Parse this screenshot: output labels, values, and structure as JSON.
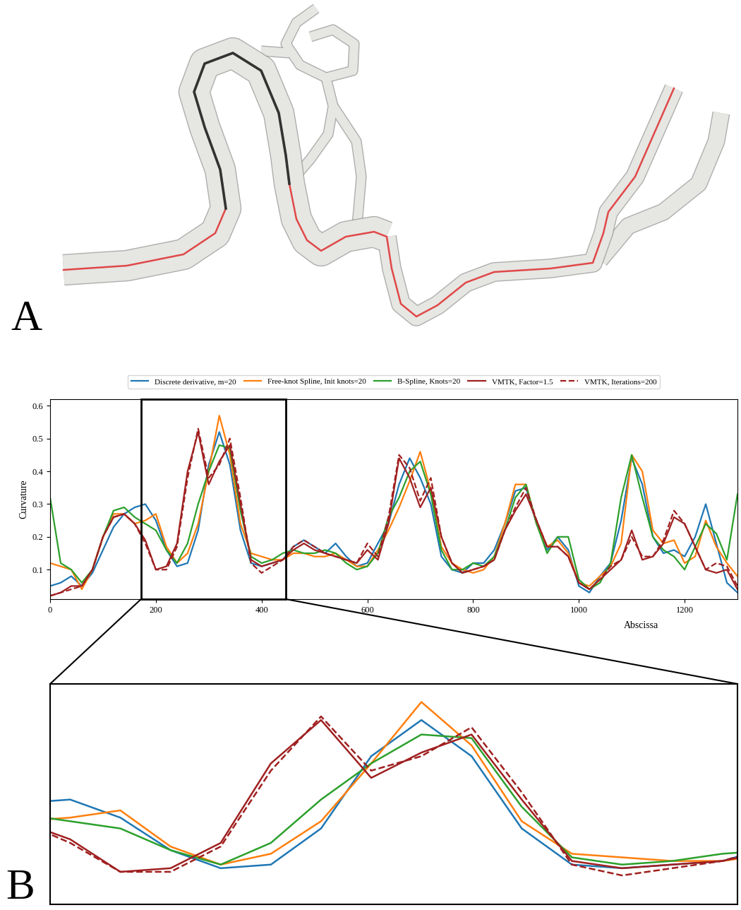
{
  "chart_data": {
    "type": "line",
    "xlabel": "Abscissa",
    "ylabel": "Curvature",
    "x": [
      0,
      20,
      40,
      60,
      80,
      100,
      120,
      140,
      160,
      180,
      200,
      220,
      240,
      260,
      280,
      300,
      320,
      340,
      360,
      380,
      400,
      420,
      440,
      460,
      480,
      500,
      520,
      540,
      560,
      580,
      600,
      620,
      640,
      660,
      680,
      700,
      720,
      740,
      760,
      780,
      800,
      820,
      840,
      860,
      880,
      900,
      920,
      940,
      960,
      980,
      1000,
      1020,
      1040,
      1060,
      1080,
      1100,
      1120,
      1140,
      1160,
      1180,
      1200,
      1220,
      1240,
      1260,
      1280,
      1300
    ],
    "xlim": [
      0,
      1300
    ],
    "xticks": [
      0,
      200,
      400,
      600,
      800,
      1000,
      1200
    ],
    "ylim": [
      0.01,
      0.62
    ],
    "yticks": [
      0.1,
      0.2,
      0.3,
      0.4,
      0.5,
      0.6
    ],
    "legend": "upper center",
    "series": [
      {
        "name": "Discrete derivative, m=20",
        "color": "#1f77b4",
        "line_style": "solid",
        "values": [
          0.05,
          0.06,
          0.08,
          0.05,
          0.09,
          0.16,
          0.23,
          0.27,
          0.29,
          0.3,
          0.25,
          0.16,
          0.11,
          0.12,
          0.22,
          0.42,
          0.52,
          0.42,
          0.22,
          0.12,
          0.11,
          0.12,
          0.13,
          0.17,
          0.19,
          0.17,
          0.15,
          0.18,
          0.14,
          0.11,
          0.12,
          0.18,
          0.24,
          0.36,
          0.44,
          0.38,
          0.3,
          0.14,
          0.1,
          0.09,
          0.12,
          0.12,
          0.16,
          0.24,
          0.34,
          0.35,
          0.24,
          0.16,
          0.2,
          0.16,
          0.05,
          0.03,
          0.08,
          0.12,
          0.25,
          0.44,
          0.36,
          0.2,
          0.15,
          0.16,
          0.14,
          0.2,
          0.3,
          0.18,
          0.06,
          0.03
        ]
      },
      {
        "name": "Free-knot Spline, Init knots=20",
        "color": "#ff7f0e",
        "line_style": "solid",
        "values": [
          0.12,
          0.11,
          0.1,
          0.04,
          0.1,
          0.2,
          0.27,
          0.27,
          0.24,
          0.25,
          0.27,
          0.17,
          0.12,
          0.15,
          0.24,
          0.4,
          0.57,
          0.45,
          0.24,
          0.15,
          0.14,
          0.13,
          0.13,
          0.15,
          0.15,
          0.14,
          0.14,
          0.15,
          0.13,
          0.11,
          0.11,
          0.16,
          0.22,
          0.29,
          0.37,
          0.46,
          0.34,
          0.17,
          0.12,
          0.1,
          0.09,
          0.1,
          0.14,
          0.24,
          0.36,
          0.36,
          0.24,
          0.17,
          0.19,
          0.15,
          0.06,
          0.05,
          0.08,
          0.11,
          0.18,
          0.45,
          0.4,
          0.22,
          0.18,
          0.19,
          0.12,
          0.14,
          0.25,
          0.17,
          0.12,
          0.08
        ]
      },
      {
        "name": "B-Spline, Knots=20",
        "color": "#2ca02c",
        "line_style": "solid",
        "values": [
          0.32,
          0.12,
          0.1,
          0.06,
          0.1,
          0.2,
          0.28,
          0.29,
          0.26,
          0.24,
          0.22,
          0.16,
          0.12,
          0.18,
          0.3,
          0.4,
          0.48,
          0.47,
          0.28,
          0.14,
          0.12,
          0.13,
          0.15,
          0.16,
          0.15,
          0.15,
          0.16,
          0.15,
          0.12,
          0.1,
          0.11,
          0.15,
          0.26,
          0.32,
          0.4,
          0.43,
          0.33,
          0.16,
          0.1,
          0.1,
          0.12,
          0.11,
          0.14,
          0.22,
          0.32,
          0.36,
          0.24,
          0.15,
          0.2,
          0.2,
          0.07,
          0.04,
          0.06,
          0.12,
          0.32,
          0.45,
          0.32,
          0.2,
          0.16,
          0.14,
          0.1,
          0.17,
          0.24,
          0.21,
          0.13,
          0.33
        ]
      },
      {
        "name": "VMTK, Factor=1.5",
        "color": "#a02020",
        "line_style": "solid",
        "values": [
          0.02,
          0.03,
          0.05,
          0.05,
          0.1,
          0.2,
          0.26,
          0.27,
          0.24,
          0.19,
          0.1,
          0.11,
          0.18,
          0.4,
          0.52,
          0.36,
          0.43,
          0.48,
          0.3,
          0.13,
          0.11,
          0.12,
          0.13,
          0.16,
          0.18,
          0.16,
          0.15,
          0.14,
          0.13,
          0.12,
          0.16,
          0.13,
          0.24,
          0.44,
          0.38,
          0.29,
          0.35,
          0.2,
          0.12,
          0.09,
          0.1,
          0.11,
          0.13,
          0.22,
          0.28,
          0.33,
          0.25,
          0.17,
          0.17,
          0.14,
          0.06,
          0.04,
          0.07,
          0.1,
          0.13,
          0.22,
          0.13,
          0.14,
          0.18,
          0.26,
          0.24,
          0.17,
          0.1,
          0.09,
          0.1,
          0.04
        ]
      },
      {
        "name": "VMTK, Iterations=200",
        "color": "#a02020",
        "line_style": "dashed",
        "values": [
          0.02,
          0.03,
          0.04,
          0.05,
          0.1,
          0.2,
          0.26,
          0.27,
          0.24,
          0.18,
          0.1,
          0.1,
          0.17,
          0.38,
          0.53,
          0.38,
          0.42,
          0.5,
          0.32,
          0.12,
          0.09,
          0.11,
          0.13,
          0.17,
          0.19,
          0.17,
          0.15,
          0.14,
          0.13,
          0.12,
          0.18,
          0.14,
          0.26,
          0.45,
          0.41,
          0.31,
          0.38,
          0.2,
          0.12,
          0.09,
          0.1,
          0.11,
          0.13,
          0.22,
          0.29,
          0.35,
          0.25,
          0.17,
          0.17,
          0.14,
          0.06,
          0.04,
          0.07,
          0.11,
          0.13,
          0.2,
          0.14,
          0.14,
          0.19,
          0.28,
          0.24,
          0.17,
          0.1,
          0.12,
          0.11,
          0.05
        ]
      }
    ],
    "zoom": {
      "xlim": [
        172,
        446
      ],
      "ylim": [
        0.01,
        0.62
      ],
      "tick_labels": false
    }
  },
  "panel_labels": [
    "A",
    "B"
  ]
}
